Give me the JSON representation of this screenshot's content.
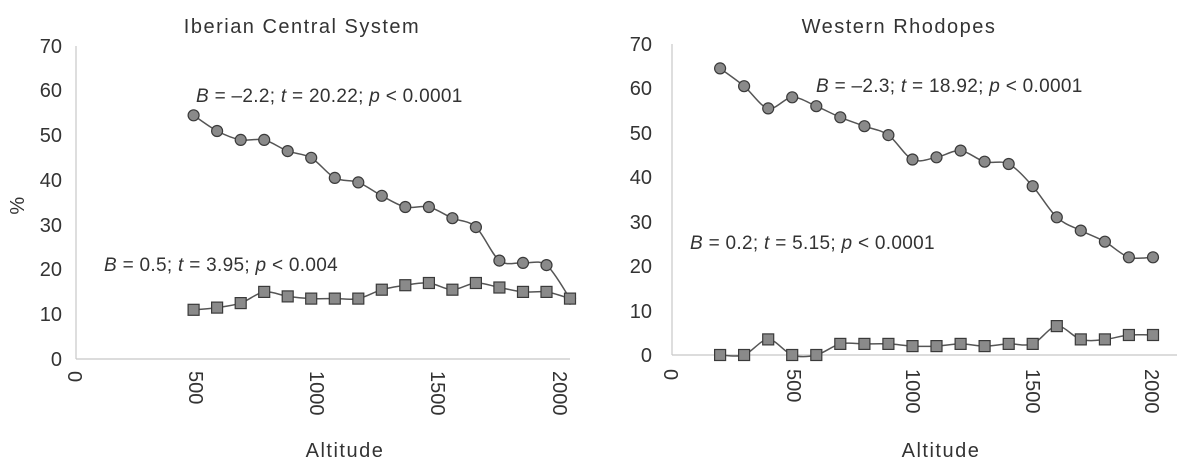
{
  "chart_data": [
    {
      "type": "line",
      "title": "Iberian Central System",
      "xlabel": "Altitude",
      "ylabel": "%",
      "xlim": [
        0,
        2100
      ],
      "ylim": [
        0,
        70
      ],
      "x_ticks": [
        "0",
        "500",
        "1000",
        "1500",
        "2000"
      ],
      "y_ticks": [
        "0",
        "10",
        "20",
        "30",
        "40",
        "50",
        "60",
        "70"
      ],
      "grid": false,
      "series": [
        {
          "marker": "circle",
          "color": "#8a8a8a",
          "points": [
            [
              500,
              54.5
            ],
            [
              600,
              51
            ],
            [
              700,
              49
            ],
            [
              800,
              49
            ],
            [
              900,
              46.5
            ],
            [
              1000,
              45
            ],
            [
              1100,
              40.5
            ],
            [
              1200,
              39.5
            ],
            [
              1300,
              36.5
            ],
            [
              1400,
              34
            ],
            [
              1500,
              34
            ],
            [
              1600,
              31.5
            ],
            [
              1700,
              29.5
            ],
            [
              1800,
              22
            ],
            [
              1900,
              21.5
            ],
            [
              2000,
              21
            ],
            [
              2100,
              13.5
            ]
          ],
          "annotation": {
            "b": "B",
            "b_val": " = –2.2; ",
            "t": "t",
            "t_val": " = 20.22; ",
            "p": "p",
            "p_val": " < 0.0001"
          }
        },
        {
          "marker": "square",
          "color": "#8a8a8a",
          "points": [
            [
              500,
              11
            ],
            [
              600,
              11.5
            ],
            [
              700,
              12.5
            ],
            [
              800,
              15
            ],
            [
              900,
              14
            ],
            [
              1000,
              13.5
            ],
            [
              1100,
              13.5
            ],
            [
              1200,
              13.5
            ],
            [
              1300,
              15.5
            ],
            [
              1400,
              16.5
            ],
            [
              1500,
              17
            ],
            [
              1600,
              15.5
            ],
            [
              1700,
              17
            ],
            [
              1800,
              16
            ],
            [
              1900,
              15
            ],
            [
              2000,
              15
            ],
            [
              2100,
              13.5
            ]
          ],
          "annotation": {
            "b": "B",
            "b_val": " = 0.5; ",
            "t": "t",
            "t_val": " = 3.95; ",
            "p": "p",
            "p_val": " < 0.004"
          }
        }
      ]
    },
    {
      "type": "line",
      "title": "Western Rhodopes",
      "xlabel": "Altitude",
      "ylabel": "",
      "xlim": [
        0,
        2100
      ],
      "ylim": [
        0,
        70
      ],
      "x_ticks": [
        "0",
        "500",
        "1000",
        "1500",
        "2000"
      ],
      "y_ticks": [
        "0",
        "10",
        "20",
        "30",
        "40",
        "50",
        "60",
        "70"
      ],
      "grid": false,
      "series": [
        {
          "marker": "circle",
          "color": "#8a8a8a",
          "points": [
            [
              200,
              64.5
            ],
            [
              300,
              60.5
            ],
            [
              400,
              55.5
            ],
            [
              500,
              58
            ],
            [
              600,
              56
            ],
            [
              700,
              53.5
            ],
            [
              800,
              51.5
            ],
            [
              900,
              49.5
            ],
            [
              1000,
              44
            ],
            [
              1100,
              44.5
            ],
            [
              1200,
              46
            ],
            [
              1300,
              43.5
            ],
            [
              1400,
              43
            ],
            [
              1500,
              38
            ],
            [
              1600,
              31
            ],
            [
              1700,
              28
            ],
            [
              1800,
              25.5
            ],
            [
              1900,
              22
            ],
            [
              2000,
              22
            ]
          ],
          "annotation": {
            "b": "B",
            "b_val": " = –2.3; ",
            "t": "t",
            "t_val": " = 18.92; ",
            "p": "p",
            "p_val": " < 0.0001"
          }
        },
        {
          "marker": "square",
          "color": "#8a8a8a",
          "points": [
            [
              200,
              0
            ],
            [
              300,
              0
            ],
            [
              400,
              3.5
            ],
            [
              500,
              0
            ],
            [
              600,
              0
            ],
            [
              700,
              2.5
            ],
            [
              800,
              2.5
            ],
            [
              900,
              2.5
            ],
            [
              1000,
              2
            ],
            [
              1100,
              2
            ],
            [
              1200,
              2.5
            ],
            [
              1300,
              2
            ],
            [
              1400,
              2.5
            ],
            [
              1500,
              2.5
            ],
            [
              1600,
              6.5
            ],
            [
              1700,
              3.5
            ],
            [
              1800,
              3.5
            ],
            [
              1900,
              4.5
            ],
            [
              2000,
              4.5
            ]
          ],
          "annotation": {
            "b": "B",
            "b_val": " = 0.2; ",
            "t": "t",
            "t_val": " = 5.15; ",
            "p": "p",
            "p_val": " < 0.0001"
          }
        }
      ]
    }
  ]
}
